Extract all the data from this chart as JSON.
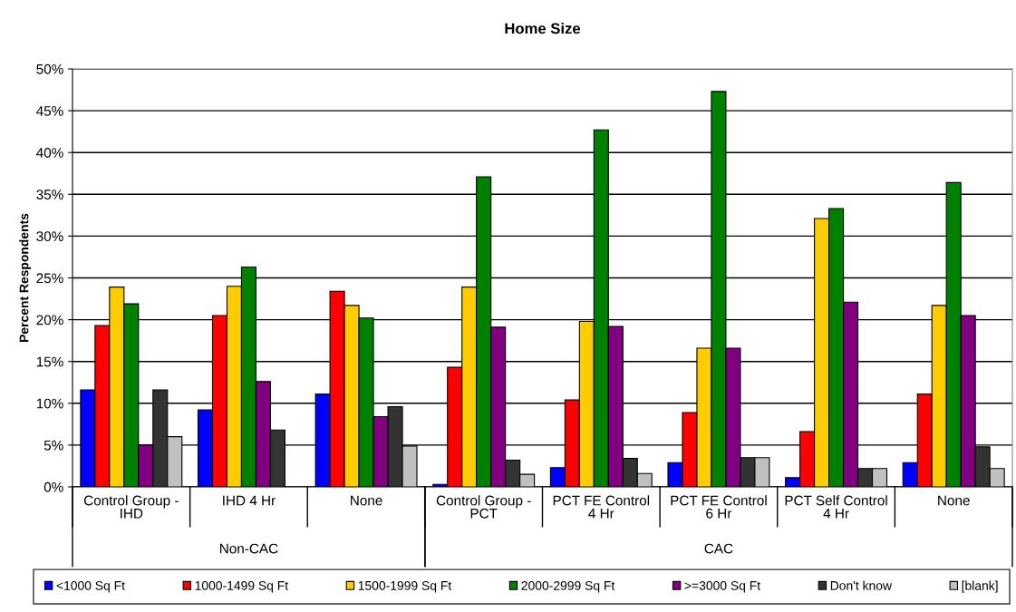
{
  "chart_data": {
    "type": "bar",
    "title": "Home Size",
    "ylabel": "Percent Respondents",
    "categories": [
      "Control Group -\nIHD",
      "IHD 4 Hr",
      "None",
      "Control Group -\nPCT",
      "PCT FE Control\n4 Hr",
      "PCT FE Control\n6 Hr",
      "PCT Self Control\n4 Hr",
      "None"
    ],
    "series": [
      {
        "name": "<1000 Sq Ft",
        "color": "#0000ff",
        "values": [
          11.6,
          9.2,
          11.1,
          0.3,
          2.3,
          2.9,
          1.1,
          2.9
        ]
      },
      {
        "name": "1000-1499 Sq Ft",
        "color": "#ff0000",
        "values": [
          19.3,
          20.5,
          23.4,
          14.3,
          10.4,
          8.9,
          6.6,
          11.1
        ]
      },
      {
        "name": "1500-1999 Sq Ft",
        "color": "#ffcc00",
        "values": [
          23.9,
          24.0,
          21.7,
          23.9,
          19.8,
          16.6,
          32.1,
          21.7
        ]
      },
      {
        "name": "2000-2999 Sq Ft",
        "color": "#008000",
        "values": [
          21.9,
          26.3,
          20.2,
          37.1,
          42.7,
          47.3,
          33.3,
          36.4
        ]
      },
      {
        "name": ">=3000 Sq Ft",
        "color": "#800080",
        "values": [
          5.0,
          12.6,
          8.4,
          19.1,
          19.2,
          16.6,
          22.1,
          20.5
        ]
      },
      {
        "name": "Don't know",
        "color": "#333333",
        "values": [
          11.6,
          6.8,
          9.6,
          3.2,
          3.4,
          3.5,
          2.2,
          4.8
        ]
      },
      {
        "name": "[blank]",
        "color": "#c0c0c0",
        "values": [
          6.0,
          null,
          4.9,
          1.5,
          1.6,
          3.5,
          2.2,
          2.2
        ]
      }
    ],
    "ylim": [
      0,
      50
    ],
    "yticks": [
      {
        "value": 0,
        "label": "0%"
      },
      {
        "value": 5,
        "label": "5%"
      },
      {
        "value": 10,
        "label": "10%"
      },
      {
        "value": 15,
        "label": "15%"
      },
      {
        "value": 20,
        "label": "20%"
      },
      {
        "value": 25,
        "label": "25%"
      },
      {
        "value": 30,
        "label": "30%"
      },
      {
        "value": 35,
        "label": "35%"
      },
      {
        "value": 40,
        "label": "40%"
      },
      {
        "value": 45,
        "label": "45%"
      },
      {
        "value": 50,
        "label": "50%"
      }
    ],
    "annotations": [
      "Non-CAC",
      "CAC"
    ],
    "grid": "y",
    "legend": "bottom"
  }
}
